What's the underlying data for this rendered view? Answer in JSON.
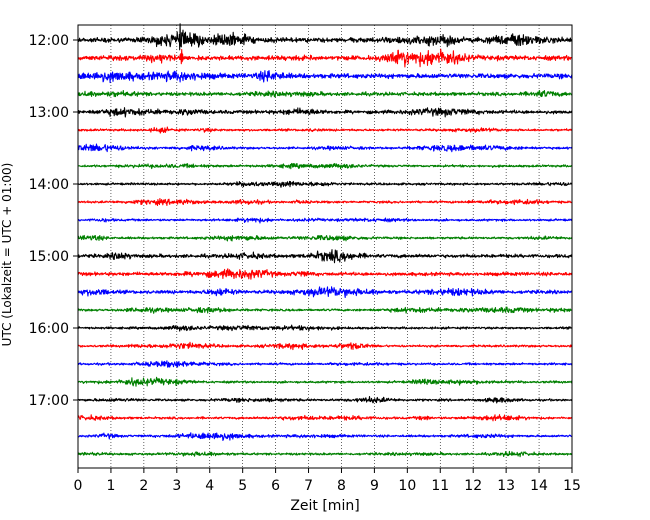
{
  "chart_data": {
    "type": "line",
    "title": "",
    "xlabel": "Zeit  [min]",
    "ylabel": "UTC (Lokalzeit = UTC + 01:00)",
    "xlim": [
      0,
      15
    ],
    "x_ticks": [
      0,
      1,
      2,
      3,
      4,
      5,
      6,
      7,
      8,
      9,
      10,
      11,
      12,
      13,
      14,
      15
    ],
    "y_tick_labels": [
      "12:00",
      "13:00",
      "14:00",
      "15:00",
      "16:00",
      "17:00"
    ],
    "grid": "vertical dotted",
    "trace_interval_minutes": 15,
    "trace_colors": [
      "#000000",
      "#ff0000",
      "#0000ff",
      "#008000"
    ],
    "traces": [
      {
        "start": "12:00",
        "color": "#000000",
        "level": "high"
      },
      {
        "start": "12:15",
        "color": "#ff0000",
        "level": "high"
      },
      {
        "start": "12:30",
        "color": "#0000ff",
        "level": "high"
      },
      {
        "start": "12:45",
        "color": "#008000",
        "level": "medium"
      },
      {
        "start": "13:00",
        "color": "#000000",
        "level": "medium"
      },
      {
        "start": "13:15",
        "color": "#ff0000",
        "level": "low"
      },
      {
        "start": "13:30",
        "color": "#0000ff",
        "level": "low"
      },
      {
        "start": "13:45",
        "color": "#008000",
        "level": "low"
      },
      {
        "start": "14:00",
        "color": "#000000",
        "level": "low"
      },
      {
        "start": "14:15",
        "color": "#ff0000",
        "level": "low"
      },
      {
        "start": "14:30",
        "color": "#0000ff",
        "level": "low"
      },
      {
        "start": "14:45",
        "color": "#008000",
        "level": "low"
      },
      {
        "start": "15:00",
        "color": "#000000",
        "level": "medium"
      },
      {
        "start": "15:15",
        "color": "#ff0000",
        "level": "medium"
      },
      {
        "start": "15:30",
        "color": "#0000ff",
        "level": "medium"
      },
      {
        "start": "15:45",
        "color": "#008000",
        "level": "low"
      },
      {
        "start": "16:00",
        "color": "#000000",
        "level": "low"
      },
      {
        "start": "16:15",
        "color": "#ff0000",
        "level": "low"
      },
      {
        "start": "16:30",
        "color": "#0000ff",
        "level": "low"
      },
      {
        "start": "16:45",
        "color": "#008000",
        "level": "low"
      },
      {
        "start": "17:00",
        "color": "#000000",
        "level": "low"
      },
      {
        "start": "17:15",
        "color": "#ff0000",
        "level": "low"
      },
      {
        "start": "17:30",
        "color": "#0000ff",
        "level": "low"
      },
      {
        "start": "17:45",
        "color": "#008000",
        "level": "low"
      }
    ],
    "events": [
      {
        "start": "12:00",
        "x": 3.1,
        "amplitude": "spike"
      },
      {
        "start": "12:15",
        "x": 3.15,
        "amplitude": "spike"
      }
    ]
  }
}
